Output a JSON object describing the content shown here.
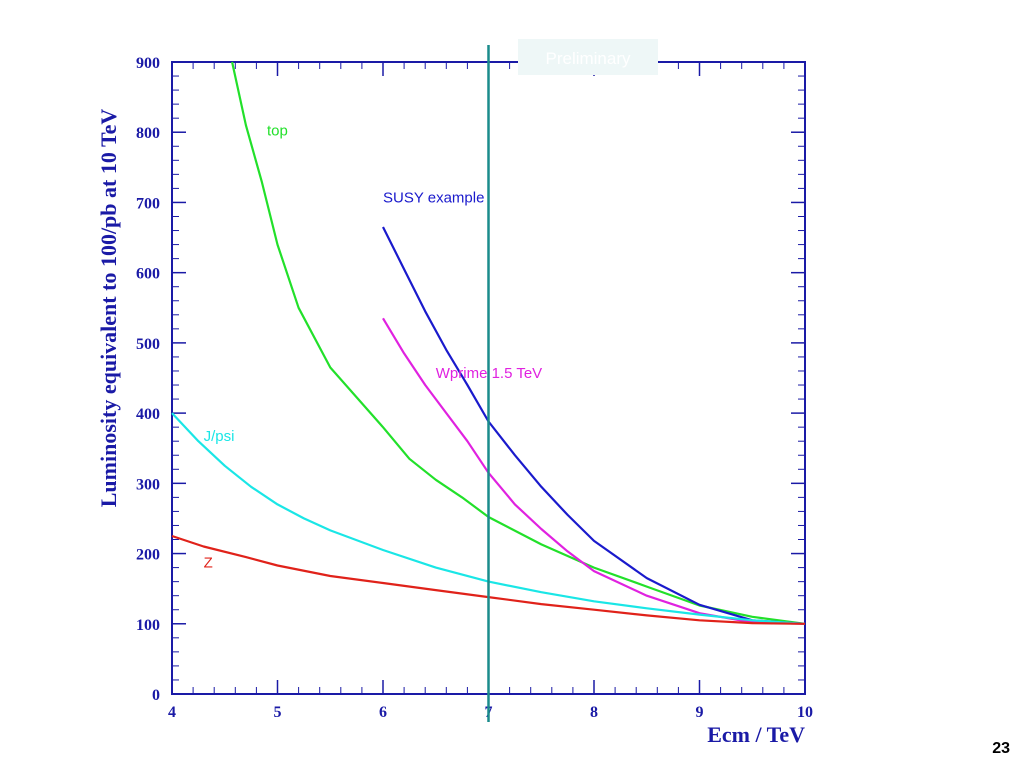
{
  "page_number": "23",
  "chart_data": {
    "type": "line",
    "title": "",
    "watermark": "Preliminary",
    "xlabel": "Ecm / TeV",
    "ylabel": "Luminosity equivalent to 100/pb at 10 TeV",
    "xlim": [
      4,
      10
    ],
    "ylim": [
      0,
      900
    ],
    "x_ticks": [
      4,
      5,
      6,
      7,
      8,
      9,
      10
    ],
    "y_ticks": [
      0,
      100,
      200,
      300,
      400,
      500,
      600,
      700,
      800,
      900
    ],
    "grid": false,
    "marker_line": {
      "x": 7,
      "color": "#1a8c8c"
    },
    "axis_color": "#1a1aa6",
    "series": [
      {
        "name": "top",
        "color": "#22e02a",
        "points": [
          [
            4.57,
            900
          ],
          [
            4.7,
            810
          ],
          [
            4.85,
            730
          ],
          [
            5.0,
            640
          ],
          [
            5.2,
            550
          ],
          [
            5.5,
            465
          ],
          [
            6.0,
            380
          ],
          [
            6.25,
            335
          ],
          [
            6.5,
            305
          ],
          [
            6.75,
            280
          ],
          [
            7.0,
            252
          ],
          [
            7.5,
            213
          ],
          [
            8.0,
            180
          ],
          [
            8.5,
            153
          ],
          [
            9.0,
            126
          ],
          [
            9.5,
            110
          ],
          [
            10.0,
            100
          ]
        ]
      },
      {
        "name": "SUSY example",
        "color": "#1a1acc",
        "points": [
          [
            6.0,
            665
          ],
          [
            6.2,
            605
          ],
          [
            6.4,
            545
          ],
          [
            6.6,
            490
          ],
          [
            6.8,
            440
          ],
          [
            7.0,
            388
          ],
          [
            7.25,
            340
          ],
          [
            7.5,
            295
          ],
          [
            7.75,
            255
          ],
          [
            8.0,
            218
          ],
          [
            8.5,
            165
          ],
          [
            9.0,
            127
          ],
          [
            9.5,
            105
          ],
          [
            10.0,
            100
          ]
        ]
      },
      {
        "name": "Wprime 1.5 TeV",
        "color": "#e022e0",
        "points": [
          [
            6.0,
            535
          ],
          [
            6.2,
            485
          ],
          [
            6.4,
            440
          ],
          [
            6.6,
            400
          ],
          [
            6.8,
            360
          ],
          [
            7.0,
            315
          ],
          [
            7.25,
            270
          ],
          [
            7.5,
            235
          ],
          [
            7.75,
            203
          ],
          [
            8.0,
            175
          ],
          [
            8.5,
            140
          ],
          [
            9.0,
            115
          ],
          [
            9.5,
            102
          ],
          [
            10.0,
            100
          ]
        ]
      },
      {
        "name": "J/psi",
        "color": "#1ae6e6",
        "points": [
          [
            4.0,
            400
          ],
          [
            4.25,
            360
          ],
          [
            4.5,
            325
          ],
          [
            4.75,
            295
          ],
          [
            5.0,
            270
          ],
          [
            5.25,
            250
          ],
          [
            5.5,
            233
          ],
          [
            6.0,
            205
          ],
          [
            6.5,
            180
          ],
          [
            7.0,
            160
          ],
          [
            7.5,
            145
          ],
          [
            8.0,
            132
          ],
          [
            8.5,
            122
          ],
          [
            9.0,
            113
          ],
          [
            9.5,
            105
          ],
          [
            10.0,
            100
          ]
        ]
      },
      {
        "name": "Z",
        "color": "#e0221a",
        "points": [
          [
            4.0,
            225
          ],
          [
            4.3,
            210
          ],
          [
            4.7,
            195
          ],
          [
            5.0,
            183
          ],
          [
            5.5,
            168
          ],
          [
            6.0,
            158
          ],
          [
            6.5,
            148
          ],
          [
            7.0,
            138
          ],
          [
            7.5,
            128
          ],
          [
            8.0,
            120
          ],
          [
            8.5,
            112
          ],
          [
            9.0,
            105
          ],
          [
            9.5,
            101
          ],
          [
            10.0,
            100
          ]
        ]
      }
    ],
    "series_labels": [
      {
        "text": "top",
        "x": 4.9,
        "y": 795
      },
      {
        "text": "SUSY example",
        "x": 6.0,
        "y": 700
      },
      {
        "text": "Wprime 1.5 TeV",
        "x": 6.5,
        "y": 450
      },
      {
        "text": "J/psi",
        "x": 4.3,
        "y": 360
      },
      {
        "text": "Z",
        "x": 4.3,
        "y": 180
      }
    ]
  }
}
